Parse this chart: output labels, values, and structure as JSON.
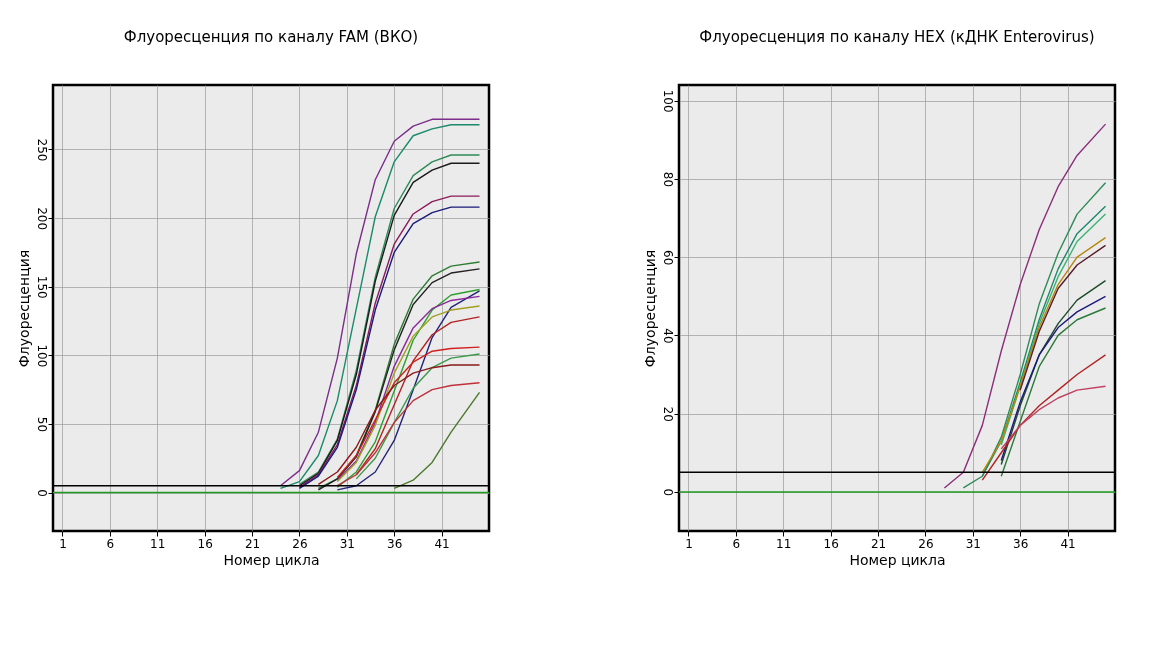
{
  "chart_data": [
    {
      "type": "line",
      "title": "Флуоресценция  по каналу  FAM (ВКО)",
      "xlabel": "Номер цикла",
      "ylabel": "Флуоресценция",
      "x": [
        24,
        26,
        28,
        30,
        32,
        34,
        36,
        38,
        40,
        42,
        45
      ],
      "xlim": [
        0,
        46
      ],
      "xticks": [
        1,
        6,
        11,
        16,
        21,
        26,
        31,
        36,
        41
      ],
      "ylim": [
        -28,
        297
      ],
      "yticks": [
        0,
        50,
        100,
        150,
        200,
        250
      ],
      "grid": true,
      "line_style": "solid",
      "ref_lines": [
        {
          "axis": "y",
          "value": 0,
          "color": "#1f9a1f"
        },
        {
          "axis": "y",
          "value": 5,
          "color": "#000000"
        }
      ],
      "series": [
        {
          "color": "#7b2d8b",
          "values": [
            5,
            16,
            44,
            98,
            174,
            228,
            256,
            267,
            272,
            272,
            272
          ]
        },
        {
          "color": "#1a8a6a",
          "values": [
            3,
            8,
            27,
            67,
            134,
            201,
            241,
            260,
            265,
            268,
            268
          ]
        },
        {
          "color": "#2e8b57",
          "values": [
            null,
            6,
            15,
            39,
            89,
            157,
            207,
            231,
            241,
            246,
            246
          ]
        },
        {
          "color": "#1a1a1a",
          "values": [
            null,
            5,
            14,
            38,
            86,
            154,
            202,
            226,
            235,
            240,
            240
          ]
        },
        {
          "color": "#8b1a5a",
          "values": [
            null,
            4,
            13,
            35,
            78,
            138,
            181,
            203,
            212,
            216,
            216
          ]
        },
        {
          "color": "#1a1a7a",
          "values": [
            null,
            3,
            12,
            33,
            75,
            133,
            175,
            196,
            204,
            208,
            208
          ]
        },
        {
          "color": "#2e7d32",
          "values": [
            null,
            null,
            3,
            10,
            27,
            60,
            108,
            141,
            158,
            165,
            168
          ]
        },
        {
          "color": "#222222",
          "values": [
            null,
            null,
            2,
            10,
            26,
            59,
            104,
            137,
            153,
            160,
            163
          ]
        },
        {
          "color": "#23237a",
          "values": [
            null,
            null,
            null,
            2,
            5,
            15,
            38,
            75,
            113,
            135,
            147
          ]
        },
        {
          "color": "#2ca02c",
          "values": [
            null,
            null,
            null,
            4,
            15,
            37,
            74,
            111,
            133,
            144,
            148
          ]
        },
        {
          "color": "#8a2a9a",
          "values": [
            null,
            null,
            null,
            9,
            23,
            51,
            92,
            120,
            134,
            140,
            143
          ]
        },
        {
          "color": "#a0a020",
          "values": [
            null,
            null,
            null,
            8,
            22,
            49,
            87,
            114,
            128,
            133,
            136
          ]
        },
        {
          "color": "#b22222",
          "values": [
            null,
            null,
            null,
            null,
            13,
            32,
            64,
            96,
            115,
            124,
            128
          ]
        },
        {
          "color": "#d02020",
          "values": [
            null,
            null,
            null,
            11,
            27,
            53,
            80,
            95,
            103,
            105,
            106
          ]
        },
        {
          "color": "#3a9a4a",
          "values": [
            null,
            null,
            null,
            null,
            10,
            25,
            51,
            76,
            91,
            98,
            101
          ]
        },
        {
          "color": "#8b1a1a",
          "values": [
            null,
            null,
            6,
            15,
            33,
            60,
            78,
            87,
            91,
            93,
            93
          ]
        },
        {
          "color": "#c0303a",
          "values": [
            null,
            null,
            null,
            5,
            13,
            29,
            51,
            67,
            75,
            78,
            80
          ]
        },
        {
          "color": "#4a7a2a",
          "values": [
            null,
            null,
            null,
            null,
            null,
            null,
            3,
            9,
            22,
            44,
            73
          ]
        }
      ]
    },
    {
      "type": "line",
      "title": "Флуоресценция  по каналу  HEX (кДНК Enterovirus)",
      "xlabel": "Номер цикла",
      "ylabel": "Флуоресценция",
      "x": [
        28,
        30,
        32,
        34,
        36,
        38,
        40,
        42,
        45
      ],
      "xlim": [
        0,
        46
      ],
      "xticks": [
        1,
        6,
        11,
        16,
        21,
        26,
        31,
        36,
        41
      ],
      "ylim": [
        -10,
        104
      ],
      "yticks": [
        0,
        20,
        40,
        60,
        80,
        100
      ],
      "grid": true,
      "line_style": "solid",
      "ref_lines": [
        {
          "axis": "y",
          "value": 0,
          "color": "#1f9a1f"
        },
        {
          "axis": "y",
          "value": 5,
          "color": "#000000"
        }
      ],
      "series": [
        {
          "color": "#8b2d7b",
          "values": [
            1,
            5,
            17,
            36,
            53,
            67,
            78,
            86,
            94
          ]
        },
        {
          "color": "#2e8b57",
          "values": [
            null,
            1,
            4,
            14,
            30,
            48,
            61,
            71,
            79
          ]
        },
        {
          "color": "#1a8a6a",
          "values": [
            null,
            null,
            4,
            13,
            28,
            44,
            57,
            66,
            73
          ]
        },
        {
          "color": "#3cb371",
          "values": [
            null,
            null,
            null,
            12,
            27,
            43,
            55,
            64,
            71
          ]
        },
        {
          "color": "#b8860b",
          "values": [
            null,
            null,
            5,
            13,
            27,
            42,
            53,
            60,
            65
          ]
        },
        {
          "color": "#5a1a2a",
          "values": [
            null,
            null,
            null,
            null,
            26,
            41,
            52,
            58,
            63
          ]
        },
        {
          "color": "#1f4a2a",
          "values": [
            null,
            null,
            null,
            7,
            22,
            35,
            43,
            49,
            54
          ]
        },
        {
          "color": "#1a1a7a",
          "values": [
            null,
            null,
            null,
            8,
            23,
            35,
            42,
            46,
            50
          ]
        },
        {
          "color": "#2a7a3a",
          "values": [
            null,
            null,
            null,
            4,
            18,
            32,
            40,
            44,
            47
          ]
        },
        {
          "color": "#b22222",
          "values": [
            null,
            null,
            3,
            10,
            17,
            22,
            26,
            30,
            35
          ]
        },
        {
          "color": "#c04060",
          "values": [
            null,
            null,
            null,
            11,
            17,
            21,
            24,
            26,
            27
          ]
        }
      ]
    }
  ]
}
